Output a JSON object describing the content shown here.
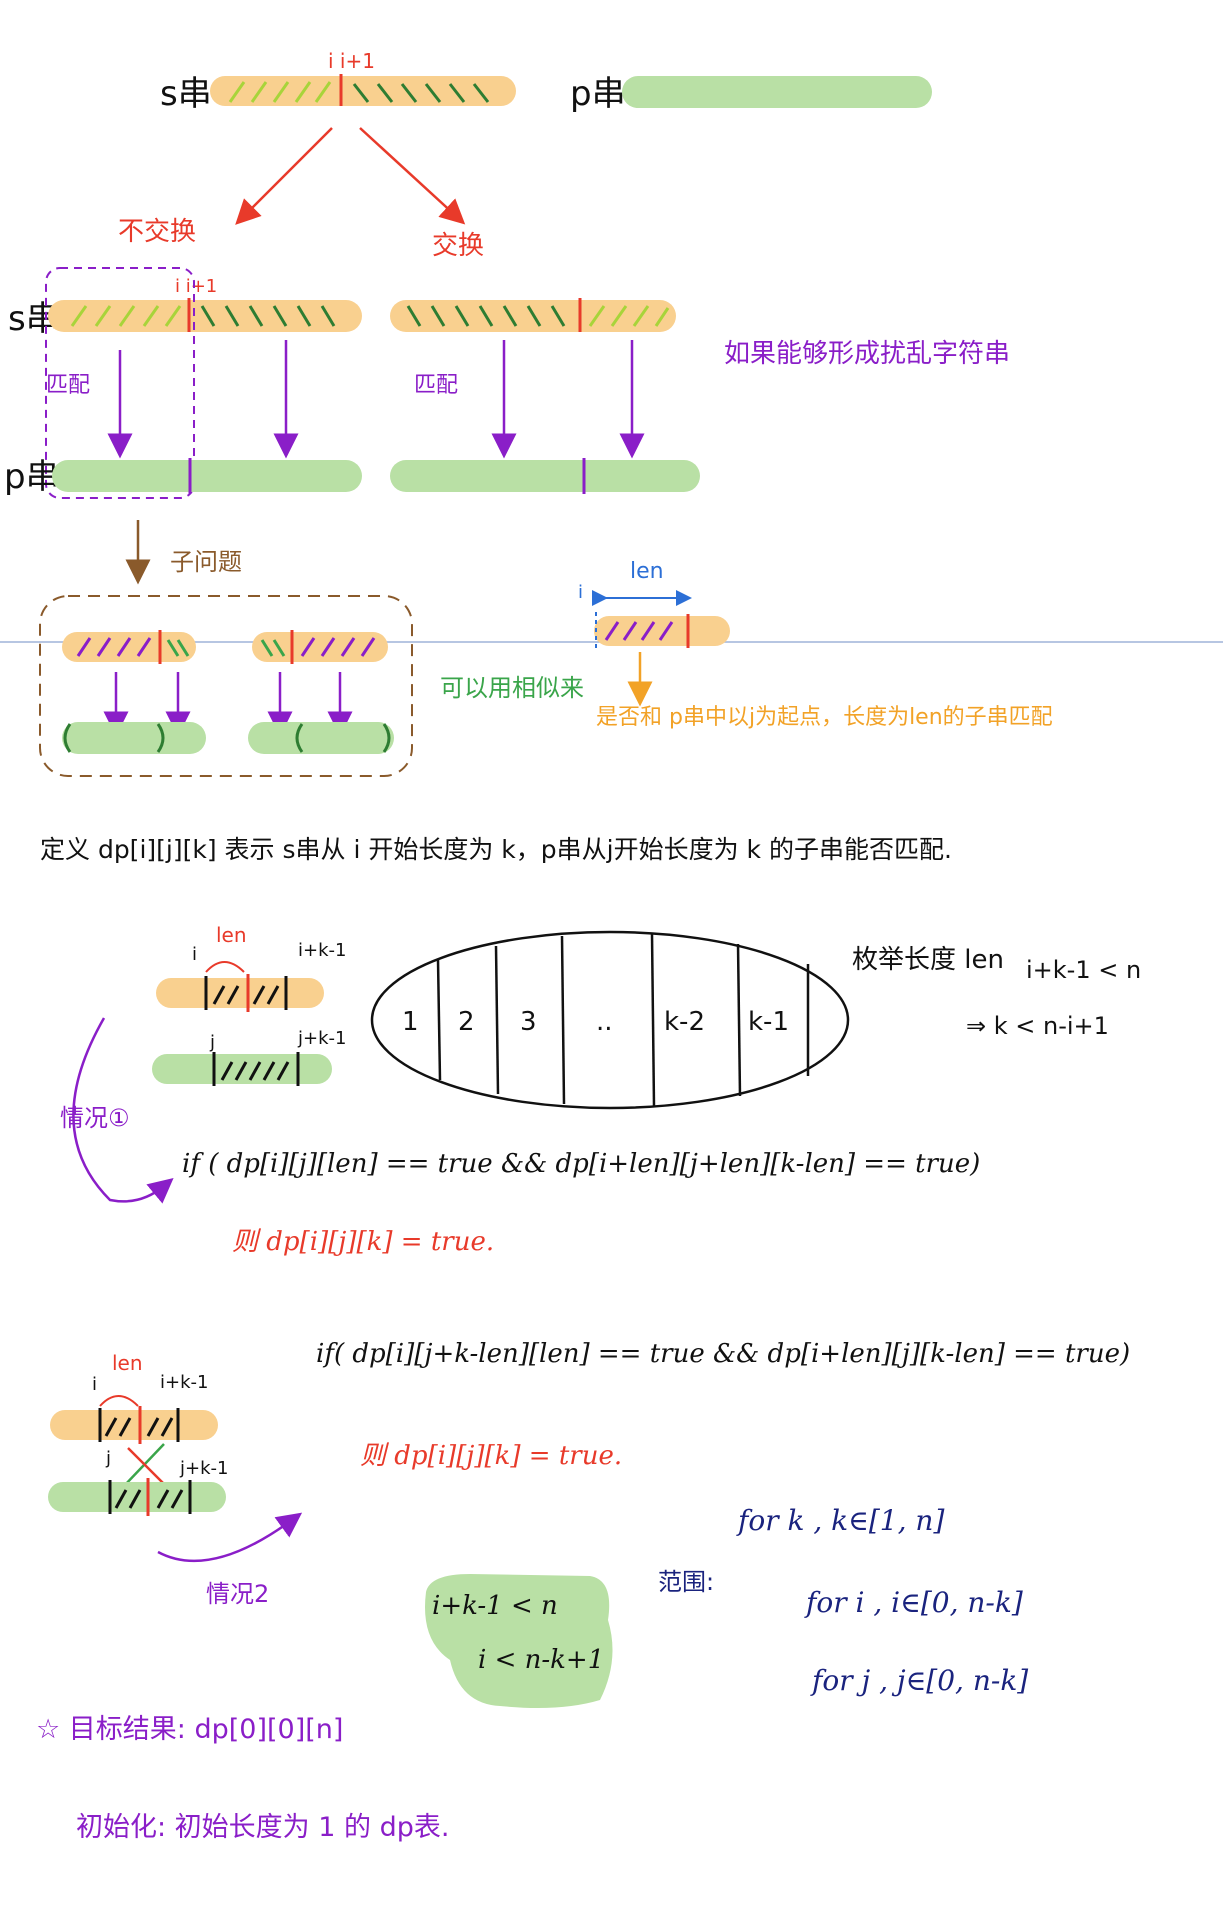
{
  "labels": {
    "s_top": "s串",
    "p_top": "p串",
    "i_iplus1": "i i+1",
    "no_swap": "不交换",
    "swap": "交换",
    "s_mid": "s串",
    "i_iplus1_mid": "i i+1",
    "match_left": "匹配",
    "match_right": "匹配",
    "p_mid": "p串",
    "note_purple": "如果能够形成扰乱字符串",
    "subproblem": "子问题",
    "similar_approx": "可以用相似来",
    "len_top": "len",
    "i_small": "i",
    "question_orange": "是否和 p串中以j为起点，长度为len的子串匹配",
    "define_dp": "定义 dp[i][j][k] 表示 s串从 i 开始长度为 k，p串从j开始长度为 k 的子串能否匹配.",
    "len_c1": "len",
    "i_c1": "i",
    "i_k_1_c1": "i+k-1",
    "j_c1": "j",
    "j_k_1_c1": "j+k-1",
    "enum_len": "枚举长度 len",
    "ineq1": "i+k-1 < n",
    "ineq2": "⇒ k < n-i+1",
    "case1": "情况①",
    "if1": "if ( dp[i][j][len] == true && dp[i+len][j+len][k-len] == true)",
    "then1": "则 dp[i][j][k] = true.",
    "len_c2": "len",
    "i_c2": "i",
    "i_k_1_c2": "i+k-1",
    "j_c2": "j",
    "j_k_1_c2": "j+k-1",
    "if2": "if( dp[i][j+k-len][len] == true && dp[i+len][j][k-len] == true)",
    "then2": "则 dp[i][j][k] = true.",
    "case2": "情况2",
    "range_label": "范围:",
    "for_k": "for k , k∈[1, n]",
    "for_i": "for i , i∈[0, n-k]",
    "for_j": "for j , j∈[0, n-k]",
    "green_ineq1": "i+k-1 < n",
    "green_ineq2": "i < n-k+1",
    "target": "☆ 目标结果: dp[0][0][n]",
    "init": "初始化: 初始长度为 1 的 dp表."
  },
  "cells": [
    "1",
    "2",
    "3",
    "..",
    "k-2",
    "k-1"
  ],
  "colors": {
    "orange_bar": "#f9d08f",
    "green_bar": "#b9e0a5",
    "red": "#e83a2a",
    "purple": "#8a1ec8",
    "orange_text": "#f2a227",
    "brown": "#8a5a2b",
    "green_line": "#2e7d32",
    "lime": "#a8d43a",
    "blue": "#2c6fd6",
    "navy": "#1a237e",
    "divider": "#9fb3d9"
  }
}
